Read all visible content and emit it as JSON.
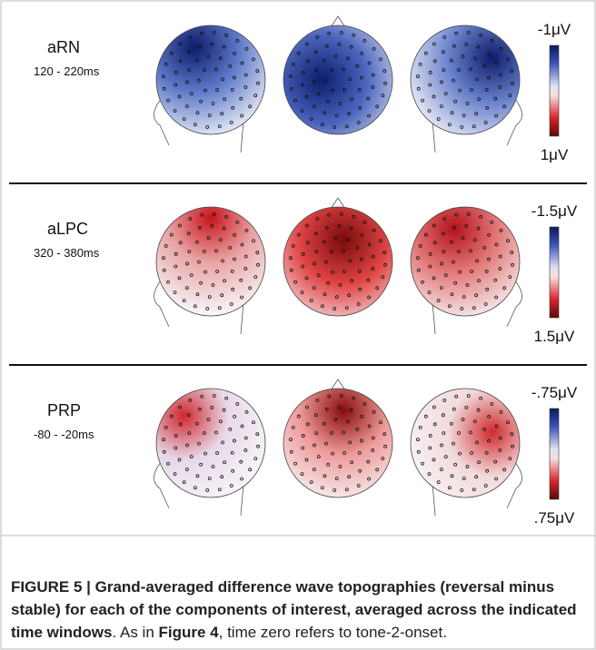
{
  "panels": [
    {
      "label": "aRN",
      "window": "120 - 220ms",
      "scale_top": "-1μV",
      "scale_bottom": "1μV"
    },
    {
      "label": "aLPC",
      "window": "320 - 380ms",
      "scale_top": "-1.5μV",
      "scale_bottom": "1.5μV"
    },
    {
      "label": "PRP",
      "window": "-80 - -20ms",
      "scale_top": "-.75μV",
      "scale_bottom": ".75μV"
    }
  ],
  "caption": {
    "segments": [
      {
        "text": "FIGURE 5 | Grand-averaged difference wave topographies (reversal minus stable) for each of the components of interest, averaged across the indicated time windows",
        "bold": true
      },
      {
        "text": ". As in ",
        "bold": false
      },
      {
        "text": "Figure 4",
        "bold": true
      },
      {
        "text": ", time zero refers to tone-2-onset.",
        "bold": false
      }
    ]
  }
}
